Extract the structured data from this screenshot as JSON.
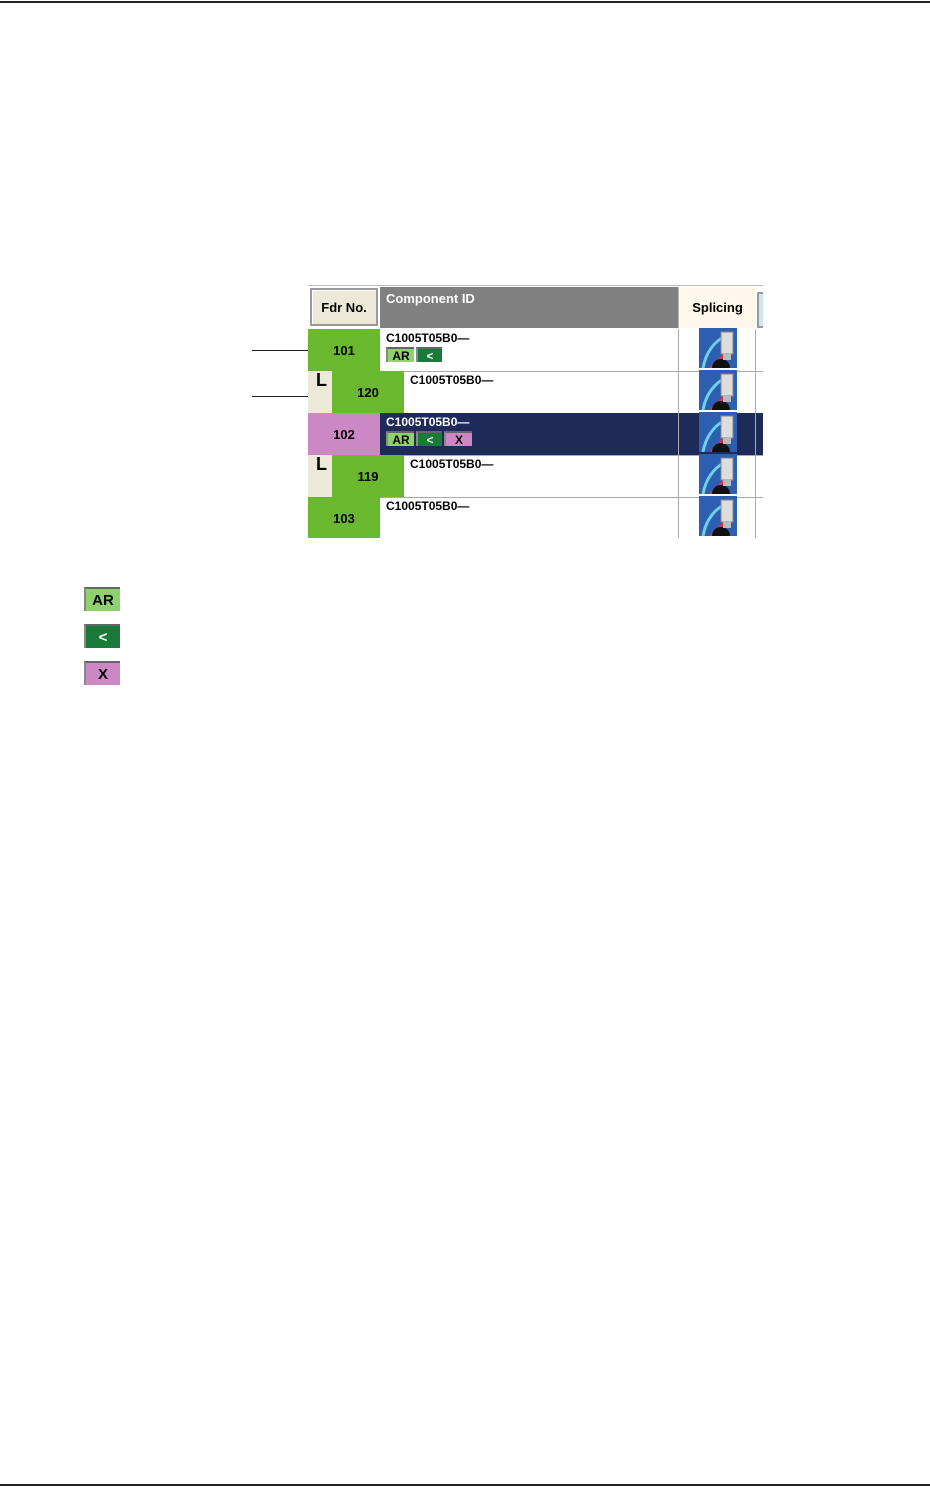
{
  "table": {
    "headers": {
      "fdr_no": "Fdr No.",
      "component_id": "Component ID",
      "splicing": "Splicing"
    },
    "rows": [
      {
        "fdr": "101",
        "component": "C1005T05B0—",
        "child": false,
        "selected": false,
        "fdr_color": "#6ab82e",
        "badges": [
          "AR",
          "<"
        ]
      },
      {
        "fdr": "120",
        "component": "C1005T05B0—",
        "child": true,
        "tree_mark": "L",
        "selected": false,
        "fdr_color": "#6ab82e",
        "badges": []
      },
      {
        "fdr": "102",
        "component": "C1005T05B0—",
        "child": false,
        "selected": true,
        "fdr_color": "#cc88c4",
        "badges": [
          "AR",
          "<",
          "X"
        ]
      },
      {
        "fdr": "119",
        "component": "C1005T05B0—",
        "child": true,
        "tree_mark": "L",
        "selected": false,
        "fdr_color": "#6ab82e",
        "badges": []
      },
      {
        "fdr": "103",
        "component": "C1005T05B0—",
        "child": false,
        "selected": false,
        "fdr_color": "#6ab82e",
        "badges": []
      }
    ],
    "splicing_icon": "splicing-icon"
  },
  "legend": [
    {
      "label": "AR",
      "color": "#8fd16f"
    },
    {
      "label": "<",
      "color": "#1a7a3a"
    },
    {
      "label": "X",
      "color": "#cc88c4"
    }
  ],
  "colors": {
    "selected_row": "#1e2a57",
    "header": "#808080"
  }
}
